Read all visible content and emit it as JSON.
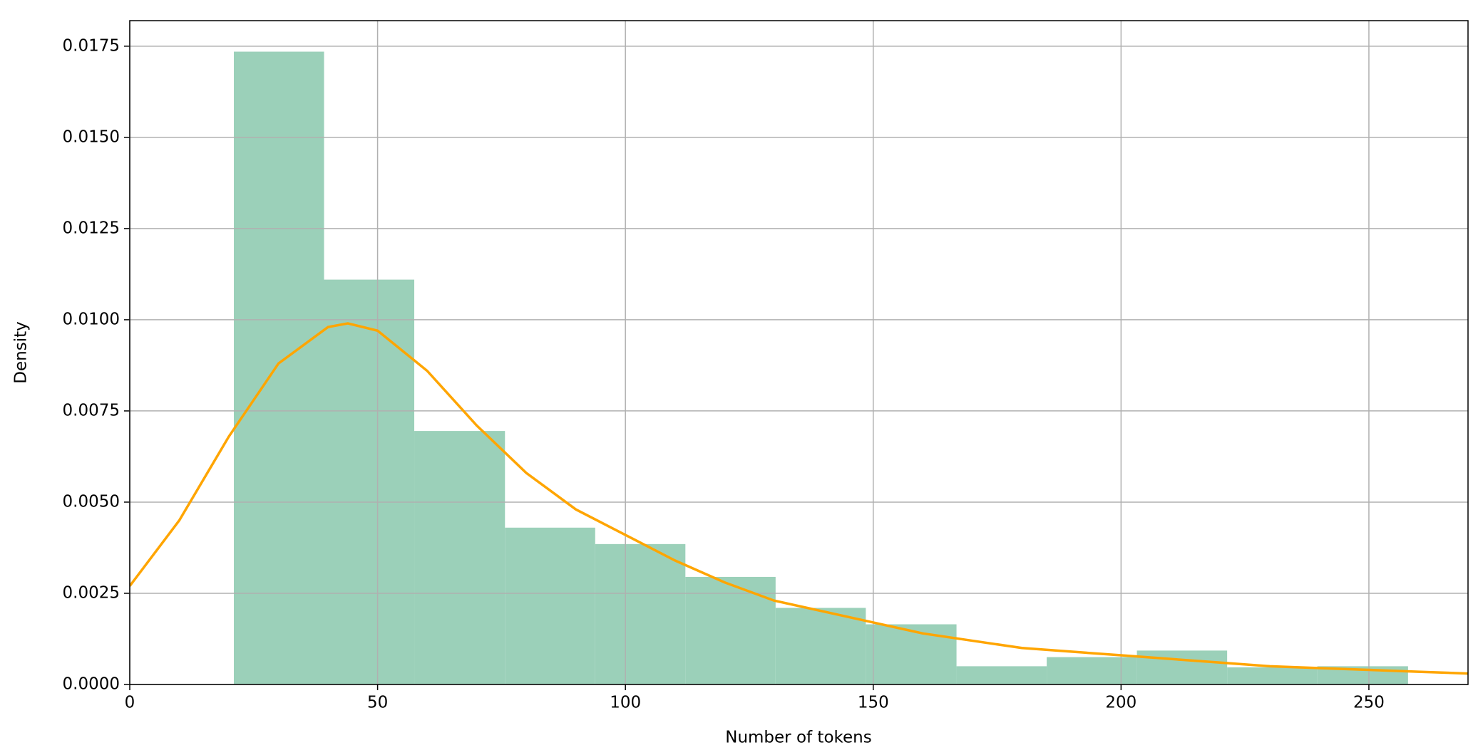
{
  "chart_data": {
    "type": "histogram",
    "xlabel": "Number of tokens",
    "ylabel": "Density",
    "bins": [
      21.0,
      39.2,
      57.4,
      75.7,
      93.9,
      112.1,
      130.3,
      148.5,
      166.8,
      185.0,
      203.2,
      221.4,
      239.6,
      257.9
    ],
    "values": [
      0.01735,
      0.0111,
      0.00695,
      0.0043,
      0.00385,
      0.00295,
      0.0021,
      0.00165,
      0.0005,
      0.00075,
      0.00093,
      0.00047,
      0.0005
    ],
    "color": "#9bd0b9",
    "line": {
      "color": "#ffa500",
      "x": [
        0,
        10,
        20,
        30,
        40,
        44,
        50,
        60,
        70,
        80,
        90,
        100,
        110,
        120,
        130,
        140,
        150,
        160,
        170,
        180,
        190,
        200,
        210,
        220,
        230,
        240,
        250,
        260,
        270
      ],
      "values": [
        0.0027,
        0.0045,
        0.0068,
        0.0088,
        0.0098,
        0.0099,
        0.0097,
        0.0086,
        0.0071,
        0.0058,
        0.0048,
        0.0041,
        0.0034,
        0.0028,
        0.0023,
        0.002,
        0.0017,
        0.0014,
        0.0012,
        0.001,
        0.0009,
        0.0008,
        0.0007,
        0.0006,
        0.0005,
        0.00045,
        0.0004,
        0.00035,
        0.0003
      ]
    },
    "xlim": [
      0,
      270
    ],
    "ylim": [
      0,
      0.0182
    ],
    "xticks": [
      0,
      50,
      100,
      150,
      200,
      250
    ],
    "yticks": [
      {
        "value": 0,
        "label": "0.0000"
      },
      {
        "value": 0.0025,
        "label": "0.0025"
      },
      {
        "value": 0.005,
        "label": "0.0050"
      },
      {
        "value": 0.0075,
        "label": "0.0075"
      },
      {
        "value": 0.01,
        "label": "0.0100"
      },
      {
        "value": 0.0125,
        "label": "0.0125"
      },
      {
        "value": 0.015,
        "label": "0.0150"
      },
      {
        "value": 0.0175,
        "label": "0.0175"
      }
    ],
    "grid": true
  }
}
